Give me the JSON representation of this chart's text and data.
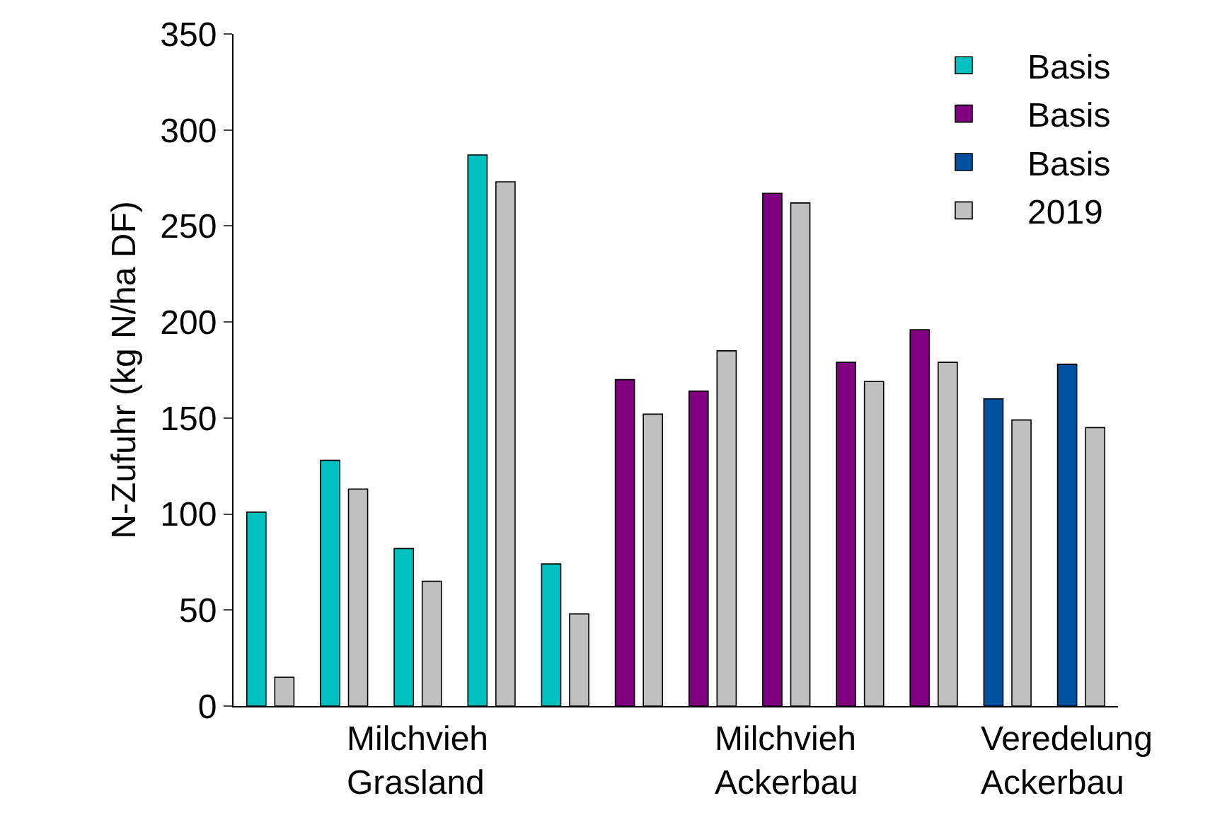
{
  "chart_data": {
    "type": "bar",
    "ylabel": "N-Zufuhr (kg N/ha DF)",
    "categories": [
      null,
      null,
      null,
      null,
      null,
      null,
      null,
      null,
      null,
      null,
      null,
      null
    ],
    "series": [
      {
        "name": "Basis",
        "color": "#00c0c0",
        "values": [
          101,
          128,
          82,
          287,
          74,
          null,
          null,
          null,
          null,
          null,
          null,
          null
        ]
      },
      {
        "name": "Basis",
        "color": "#800080",
        "values": [
          null,
          null,
          null,
          null,
          null,
          170,
          164,
          267,
          179,
          196,
          null,
          null
        ]
      },
      {
        "name": "Basis",
        "color": "#0050a0",
        "values": [
          null,
          null,
          null,
          null,
          null,
          null,
          null,
          null,
          null,
          null,
          160,
          178
        ]
      },
      {
        "name": "2019",
        "color": "#c0c0c0",
        "values": [
          15,
          113,
          65,
          273,
          48,
          152,
          185,
          262,
          169,
          179,
          149,
          145
        ]
      }
    ],
    "ylim": [
      0,
      350
    ],
    "yticks": [
      0,
      50,
      100,
      150,
      200,
      250,
      300,
      350
    ],
    "legend": "top right",
    "tick_labels": "y",
    "annotations": [
      "Milchvieh\nGrasland",
      "Milchvieh\nAckerbau",
      "Veredelung\nAckerbau"
    ]
  }
}
